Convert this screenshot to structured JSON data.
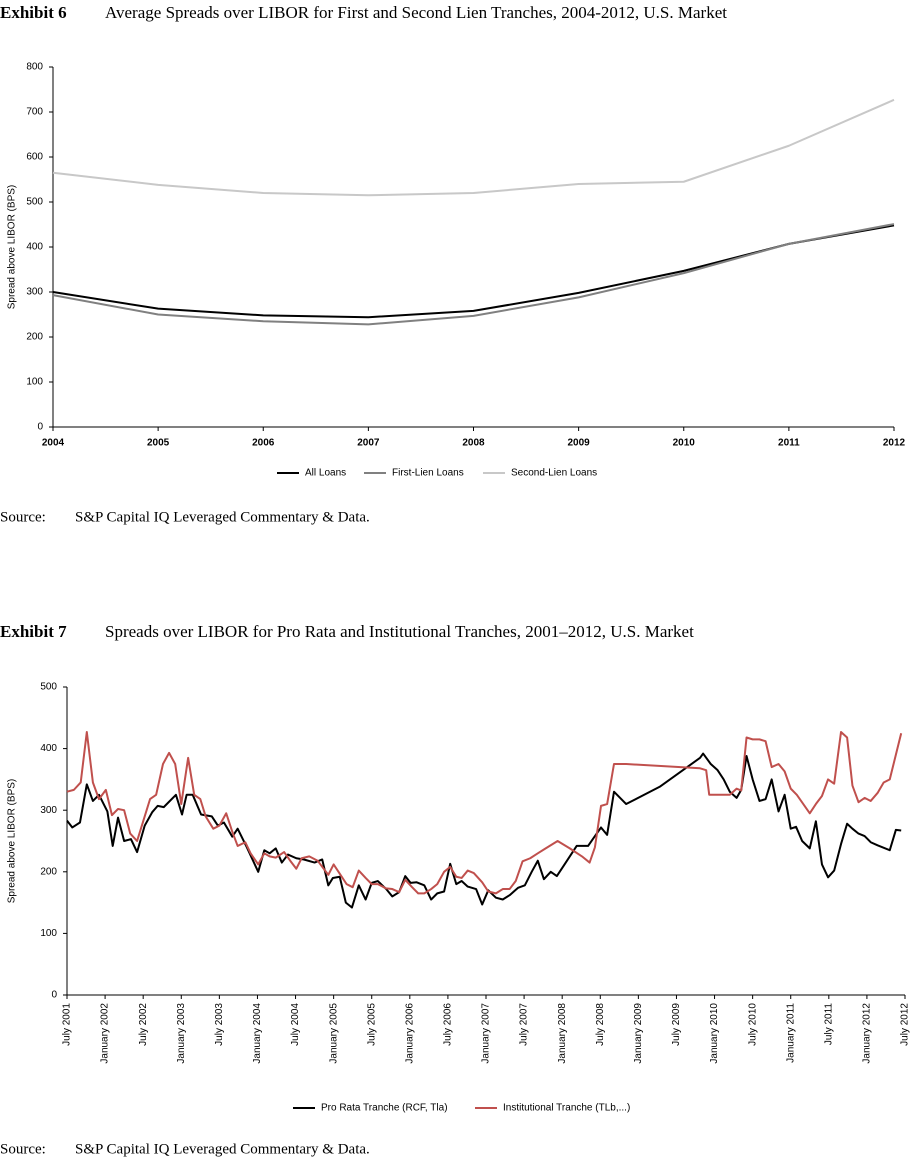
{
  "chart_data": [
    {
      "type": "line",
      "exhibit": "Exhibit 6",
      "title": "Average Spreads over LIBOR for First and Second Lien Tranches, 2004-2012, U.S. Market",
      "y_label": "Spread above LIBOR (BPS)",
      "x": [
        2004,
        2005,
        2006,
        2007,
        2008,
        2009,
        2010,
        2011,
        2012
      ],
      "series": [
        {
          "name": "All Loans",
          "color": "#000000",
          "values": [
            300,
            263,
            248,
            244,
            258,
            298,
            347,
            407,
            448
          ]
        },
        {
          "name": "First-Lien Loans",
          "color": "#808080",
          "values": [
            293,
            250,
            235,
            228,
            247,
            288,
            342,
            407,
            451
          ]
        },
        {
          "name": "Second-Lien Loans",
          "color": "#c8c8c8",
          "values": [
            565,
            538,
            520,
            515,
            520,
            540,
            545,
            625,
            727
          ]
        }
      ],
      "xlim": [
        2004,
        2012
      ],
      "xticks": [
        2004,
        2005,
        2006,
        2007,
        2008,
        2009,
        2010,
        2011,
        2012
      ],
      "ylim": [
        0,
        800
      ],
      "yticks": [
        0,
        100,
        200,
        300,
        400,
        500,
        600,
        700,
        800
      ],
      "legend": "bottom",
      "source_label": "Source:",
      "source": "S&P Capital IQ Leveraged Commentary & Data."
    },
    {
      "type": "line",
      "exhibit": "Exhibit 7",
      "title": "Spreads over LIBOR for Pro Rata and Institutional Tranches, 2001–2012, U.S. Market",
      "y_label": "Spread above LIBOR (BPS)",
      "series": [
        {
          "name": "Pro Rata Tranche (RCF, Tla)",
          "color": "#000000",
          "x": [
            2001.5,
            2001.57,
            2001.67,
            2001.76,
            2001.84,
            2001.92,
            2002.03,
            2002.1,
            2002.17,
            2002.25,
            2002.34,
            2002.42,
            2002.52,
            2002.62,
            2002.69,
            2002.77,
            2002.93,
            2003.01,
            2003.07,
            2003.15,
            2003.26,
            2003.4,
            2003.48,
            2003.56,
            2003.67,
            2003.74,
            2003.86,
            2004.01,
            2004.09,
            2004.16,
            2004.24,
            2004.32,
            2004.4,
            2004.51,
            2004.61,
            2004.75,
            2004.85,
            2004.93,
            2004.99,
            2005.08,
            2005.16,
            2005.24,
            2005.33,
            2005.42,
            2005.5,
            2005.58,
            2005.69,
            2005.77,
            2005.86,
            2005.94,
            2006.01,
            2006.09,
            2006.19,
            2006.28,
            2006.36,
            2006.45,
            2006.53,
            2006.61,
            2006.68,
            2006.76,
            2006.87,
            2006.95,
            2007.03,
            2007.13,
            2007.22,
            2007.31,
            2007.42,
            2007.51,
            2007.6,
            2007.68,
            2007.76,
            2007.85,
            2007.93,
            2008.02,
            2008.19,
            2008.34,
            2008.43,
            2008.51,
            2008.59,
            2008.68,
            2008.84,
            2009.28,
            2009.81,
            2009.85,
            2009.95,
            2010.04,
            2010.12,
            2010.2,
            2010.29,
            2010.35,
            2010.42,
            2010.5,
            2010.59,
            2010.67,
            2010.75,
            2010.84,
            2010.92,
            2011.0,
            2011.07,
            2011.15,
            2011.25,
            2011.33,
            2011.41,
            2011.49,
            2011.57,
            2011.66,
            2011.74,
            2011.81,
            2011.89,
            2011.97,
            2012.05,
            2012.14,
            2012.3,
            2012.38,
            2012.45
          ],
          "values": [
            283,
            272,
            280,
            342,
            315,
            325,
            298,
            242,
            288,
            250,
            253,
            232,
            275,
            297,
            307,
            305,
            325,
            293,
            325,
            325,
            293,
            290,
            275,
            280,
            257,
            270,
            240,
            200,
            235,
            230,
            238,
            215,
            228,
            222,
            220,
            215,
            220,
            178,
            190,
            192,
            150,
            142,
            178,
            155,
            182,
            185,
            172,
            160,
            167,
            193,
            182,
            183,
            178,
            155,
            165,
            168,
            213,
            180,
            185,
            176,
            172,
            147,
            170,
            158,
            155,
            162,
            174,
            178,
            200,
            218,
            188,
            200,
            193,
            210,
            242,
            242,
            258,
            272,
            260,
            330,
            310,
            338,
            385,
            392,
            375,
            365,
            350,
            330,
            320,
            333,
            388,
            350,
            315,
            318,
            350,
            298,
            325,
            270,
            273,
            250,
            238,
            282,
            212,
            191,
            202,
            245,
            278,
            270,
            262,
            258,
            248,
            243,
            235,
            268,
            267
          ]
        },
        {
          "name": "Institutional Tranche (TLb,...)",
          "color": "#c0504d",
          "x": [
            2001.5,
            2001.59,
            2001.68,
            2001.76,
            2001.84,
            2001.92,
            2002.01,
            2002.09,
            2002.17,
            2002.25,
            2002.33,
            2002.42,
            2002.5,
            2002.59,
            2002.67,
            2002.76,
            2002.84,
            2002.92,
            2003.0,
            2003.09,
            2003.17,
            2003.25,
            2003.32,
            2003.42,
            2003.5,
            2003.59,
            2003.67,
            2003.74,
            2003.84,
            2003.91,
            2004.01,
            2004.09,
            2004.16,
            2004.24,
            2004.35,
            2004.43,
            2004.51,
            2004.58,
            2004.68,
            2004.79,
            2004.93,
            2005.0,
            2005.08,
            2005.17,
            2005.25,
            2005.33,
            2005.42,
            2005.5,
            2005.58,
            2005.69,
            2005.77,
            2005.86,
            2005.94,
            2006.03,
            2006.11,
            2006.19,
            2006.28,
            2006.36,
            2006.45,
            2006.53,
            2006.61,
            2006.68,
            2006.76,
            2006.84,
            2006.95,
            2007.03,
            2007.13,
            2007.22,
            2007.31,
            2007.39,
            2007.48,
            2007.58,
            2007.68,
            2007.77,
            2007.94,
            2008.1,
            2008.26,
            2008.36,
            2008.43,
            2008.51,
            2008.59,
            2008.68,
            2008.84,
            2009.81,
            2009.89,
            2009.93,
            2010.2,
            2010.29,
            2010.35,
            2010.42,
            2010.5,
            2010.59,
            2010.67,
            2010.75,
            2010.84,
            2010.92,
            2011.0,
            2011.08,
            2011.25,
            2011.33,
            2011.41,
            2011.49,
            2011.57,
            2011.66,
            2011.74,
            2011.81,
            2011.89,
            2011.97,
            2012.05,
            2012.14,
            2012.22,
            2012.3,
            2012.38,
            2012.45
          ],
          "values": [
            330,
            333,
            345,
            427,
            345,
            318,
            333,
            292,
            302,
            300,
            262,
            250,
            282,
            318,
            325,
            375,
            393,
            375,
            310,
            385,
            325,
            318,
            290,
            270,
            275,
            295,
            265,
            242,
            248,
            230,
            212,
            230,
            225,
            223,
            232,
            218,
            205,
            222,
            225,
            218,
            195,
            212,
            197,
            180,
            175,
            202,
            190,
            180,
            180,
            173,
            172,
            167,
            187,
            175,
            165,
            165,
            172,
            180,
            200,
            208,
            192,
            190,
            202,
            198,
            183,
            168,
            165,
            172,
            172,
            185,
            217,
            222,
            230,
            237,
            250,
            238,
            225,
            215,
            240,
            307,
            310,
            375,
            375,
            368,
            365,
            325,
            325,
            335,
            332,
            418,
            415,
            415,
            412,
            370,
            375,
            363,
            335,
            325,
            295,
            310,
            323,
            350,
            343,
            427,
            418,
            340,
            313,
            320,
            315,
            328,
            345,
            350,
            390,
            425
          ]
        }
      ],
      "xlim": [
        2001.5,
        2012.5
      ],
      "xticks": [
        {
          "value": 2001.5,
          "label": "July 2001"
        },
        {
          "value": 2002.0,
          "label": "January 2002"
        },
        {
          "value": 2002.5,
          "label": "July 2002"
        },
        {
          "value": 2003.0,
          "label": "January 2003"
        },
        {
          "value": 2003.5,
          "label": "July 2003"
        },
        {
          "value": 2004.0,
          "label": "January 2004"
        },
        {
          "value": 2004.5,
          "label": "July 2004"
        },
        {
          "value": 2005.0,
          "label": "January 2005"
        },
        {
          "value": 2005.5,
          "label": "July 2005"
        },
        {
          "value": 2006.0,
          "label": "January 2006"
        },
        {
          "value": 2006.5,
          "label": "July 2006"
        },
        {
          "value": 2007.0,
          "label": "January 2007"
        },
        {
          "value": 2007.5,
          "label": "July 2007"
        },
        {
          "value": 2008.0,
          "label": "January 2008"
        },
        {
          "value": 2008.5,
          "label": "July 2008"
        },
        {
          "value": 2009.0,
          "label": "January 2009"
        },
        {
          "value": 2009.5,
          "label": "July 2009"
        },
        {
          "value": 2010.0,
          "label": "January 2010"
        },
        {
          "value": 2010.5,
          "label": "July 2010"
        },
        {
          "value": 2011.0,
          "label": "January 2011"
        },
        {
          "value": 2011.5,
          "label": "July 2011"
        },
        {
          "value": 2012.0,
          "label": "January 2012"
        },
        {
          "value": 2012.5,
          "label": "July 2012"
        }
      ],
      "ylim": [
        0,
        500
      ],
      "yticks": [
        0,
        100,
        200,
        300,
        400,
        500
      ],
      "legend": "bottom",
      "source_label": "Source:",
      "source": "S&P Capital IQ Leveraged Commentary & Data."
    }
  ]
}
